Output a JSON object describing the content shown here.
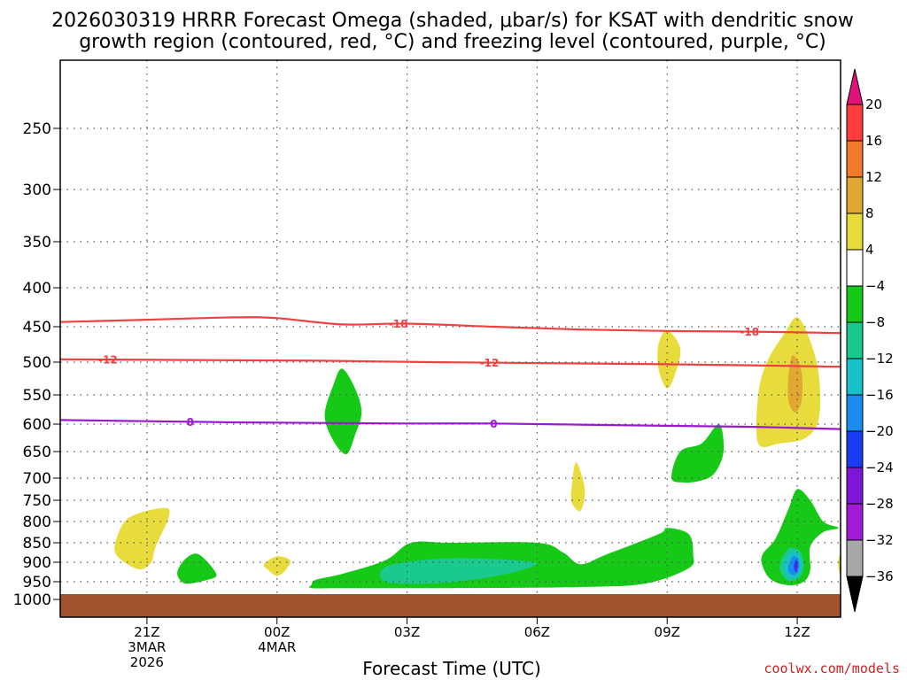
{
  "chart_data": {
    "type": "time-height contour",
    "title_line1": "2026030319 HRRR Forecast Omega (shaded, μbar/s) for KSAT with dendritic snow",
    "title_line2": "growth region (contoured, red, °C) and freezing level (contoured, purple, °C)",
    "xlabel": "Forecast Time (UTC)",
    "credit": "coolwx.com/models",
    "x_ticks": [
      {
        "hour": 2,
        "lines": [
          "21Z",
          "3MAR",
          "2026"
        ]
      },
      {
        "hour": 5,
        "lines": [
          "00Z",
          "4MAR"
        ]
      },
      {
        "hour": 8,
        "lines": [
          "03Z"
        ]
      },
      {
        "hour": 11,
        "lines": [
          "06Z"
        ]
      },
      {
        "hour": 14,
        "lines": [
          "09Z"
        ]
      },
      {
        "hour": 17,
        "lines": [
          "12Z"
        ]
      }
    ],
    "xlim": [
      0,
      18
    ],
    "y_ticks": [
      250,
      300,
      350,
      400,
      450,
      500,
      550,
      600,
      650,
      700,
      750,
      800,
      850,
      900,
      950,
      1000
    ],
    "ylim_hPa": [
      200,
      1025
    ],
    "colorbar_levels": [
      "20",
      "16",
      "12",
      "8",
      "4",
      "−4",
      "−8",
      "−12",
      "−16",
      "−20",
      "−24",
      "−28",
      "−32",
      "−36"
    ],
    "colorbar_colors": [
      "#ff3b3b",
      "#f07a2a",
      "#e0a830",
      "#e8dc3c",
      "#ffffff",
      "#16c916",
      "#1ac98e",
      "#18c0c8",
      "#1a8cf0",
      "#1a3cf0",
      "#7e16d8",
      "#a21ad6",
      "#a8a8a8"
    ],
    "colorbar_top_arrow_color": "#e0127a",
    "colorbar_bottom_arrow_color": "#000000",
    "contours": [
      {
        "label": "-18",
        "color": "#f04040",
        "points": [
          [
            0,
            444
          ],
          [
            2,
            441
          ],
          [
            4,
            438
          ],
          [
            5,
            439
          ],
          [
            6.5,
            447
          ],
          [
            8,
            446
          ],
          [
            10,
            450
          ],
          [
            12,
            454
          ],
          [
            14,
            456
          ],
          [
            16,
            457
          ],
          [
            18,
            459
          ]
        ],
        "label_positions": [
          [
            7.8,
            446
          ],
          [
            15.9,
            457
          ]
        ]
      },
      {
        "label": "-12",
        "color": "#f04040",
        "points": [
          [
            0,
            496
          ],
          [
            3,
            497
          ],
          [
            6,
            498
          ],
          [
            8.5,
            500
          ],
          [
            12,
            502
          ],
          [
            15,
            504
          ],
          [
            18,
            507
          ]
        ],
        "label_positions": [
          [
            1.1,
            496
          ],
          [
            9.9,
            501
          ]
        ]
      },
      {
        "label": "0",
        "color": "#9c18d0",
        "points": [
          [
            0,
            593
          ],
          [
            2,
            595
          ],
          [
            4,
            597
          ],
          [
            6,
            598
          ],
          [
            8,
            599
          ],
          [
            10,
            599
          ],
          [
            12,
            601
          ],
          [
            14,
            603
          ],
          [
            16,
            605
          ],
          [
            18,
            609
          ]
        ],
        "label_positions": [
          [
            3,
            596
          ],
          [
            10,
            599
          ]
        ]
      }
    ],
    "shaded_regions": [
      {
        "level": "4 to 8",
        "color": "#e8dc3c",
        "points": [
          [
            1.3,
            840
          ],
          [
            1.6,
            790
          ],
          [
            2.4,
            768
          ],
          [
            2.5,
            790
          ],
          [
            2.2,
            860
          ],
          [
            2.1,
            900
          ],
          [
            1.8,
            918
          ],
          [
            1.3,
            882
          ]
        ]
      },
      {
        "level": "4 to 8",
        "color": "#e8dc3c",
        "points": [
          [
            4.7,
            905
          ],
          [
            5.0,
            885
          ],
          [
            5.3,
            895
          ],
          [
            5.2,
            920
          ],
          [
            5.0,
            935
          ],
          [
            4.8,
            920
          ]
        ]
      },
      {
        "level": "4 to 8",
        "color": "#e8dc3c",
        "points": [
          [
            13.8,
            475
          ],
          [
            14.0,
            455
          ],
          [
            14.3,
            480
          ],
          [
            14.2,
            515
          ],
          [
            14.0,
            540
          ],
          [
            13.8,
            510
          ]
        ]
      },
      {
        "level": "4 to 8",
        "color": "#e8dc3c",
        "points": [
          [
            11.8,
            720
          ],
          [
            11.9,
            670
          ],
          [
            12.1,
            725
          ],
          [
            12.0,
            775
          ],
          [
            11.8,
            755
          ]
        ]
      },
      {
        "level": "4 to 8",
        "color": "#e8dc3c",
        "points": [
          [
            16.1,
            550
          ],
          [
            16.3,
            500
          ],
          [
            16.7,
            460
          ],
          [
            17.0,
            438
          ],
          [
            17.3,
            470
          ],
          [
            17.5,
            520
          ],
          [
            17.5,
            590
          ],
          [
            17.2,
            625
          ],
          [
            16.6,
            635
          ],
          [
            16.1,
            635
          ]
        ]
      },
      {
        "level": "8 to 12",
        "color": "#e0a830",
        "points": [
          [
            16.8,
            520
          ],
          [
            16.9,
            490
          ],
          [
            17.1,
            515
          ],
          [
            17.1,
            560
          ],
          [
            16.95,
            580
          ],
          [
            16.8,
            560
          ]
        ]
      },
      {
        "level": "4 to 8",
        "color": "#e8dc3c",
        "points": [
          [
            17.95,
            895
          ],
          [
            18,
            880
          ],
          [
            18,
            930
          ],
          [
            17.95,
            915
          ]
        ]
      },
      {
        "level": "-4 to -8",
        "color": "#16c916",
        "points": [
          [
            6.1,
            585
          ],
          [
            6.3,
            535
          ],
          [
            6.5,
            510
          ],
          [
            6.8,
            540
          ],
          [
            6.95,
            580
          ],
          [
            6.8,
            620
          ],
          [
            6.6,
            655
          ],
          [
            6.3,
            630
          ]
        ]
      },
      {
        "level": "-4 to -8",
        "color": "#16c916",
        "points": [
          [
            2.7,
            925
          ],
          [
            2.9,
            890
          ],
          [
            3.2,
            880
          ],
          [
            3.6,
            930
          ],
          [
            3.4,
            945
          ],
          [
            3.0,
            955
          ],
          [
            2.8,
            950
          ]
        ]
      },
      {
        "level": "-4 to -8",
        "color": "#16c916",
        "points": [
          [
            14.1,
            700
          ],
          [
            14.3,
            650
          ],
          [
            14.8,
            635
          ],
          [
            15.2,
            600
          ],
          [
            15.3,
            650
          ],
          [
            15.1,
            690
          ],
          [
            14.8,
            705
          ],
          [
            14.4,
            710
          ]
        ]
      },
      {
        "level": "-4 to -8",
        "color": "#16c916",
        "points": [
          [
            5.8,
            958
          ],
          [
            5.9,
            945
          ],
          [
            6.5,
            930
          ],
          [
            7.5,
            895
          ],
          [
            8.1,
            850
          ],
          [
            9,
            850
          ],
          [
            11,
            850
          ],
          [
            11.6,
            875
          ],
          [
            12.0,
            905
          ],
          [
            12.6,
            880
          ],
          [
            13.8,
            830
          ],
          [
            14.0,
            815
          ],
          [
            14.5,
            830
          ],
          [
            14.6,
            880
          ],
          [
            14.5,
            915
          ],
          [
            13.5,
            955
          ],
          [
            12,
            965
          ],
          [
            9,
            968
          ],
          [
            6.5,
            968
          ],
          [
            5.8,
            968
          ]
        ]
      },
      {
        "level": "-4 to -8",
        "color": "#16c916",
        "points": [
          [
            16.2,
            880
          ],
          [
            16.5,
            840
          ],
          [
            16.8,
            770
          ],
          [
            17.0,
            725
          ],
          [
            17.3,
            750
          ],
          [
            17.6,
            800
          ],
          [
            17.95,
            815
          ],
          [
            17.6,
            825
          ],
          [
            17.3,
            860
          ],
          [
            17.3,
            920
          ],
          [
            17.15,
            950
          ],
          [
            16.8,
            960
          ],
          [
            16.4,
            945
          ],
          [
            16.2,
            910
          ]
        ]
      },
      {
        "level": "-8 to -12",
        "color": "#1ac98e",
        "points": [
          [
            7.5,
            912
          ],
          [
            8.5,
            893
          ],
          [
            9.5,
            890
          ],
          [
            10.5,
            895
          ],
          [
            11.0,
            903
          ],
          [
            10.5,
            925
          ],
          [
            9.5,
            945
          ],
          [
            8.5,
            955
          ],
          [
            7.5,
            950
          ]
        ]
      },
      {
        "level": "-8 to -12",
        "color": "#1ac98e",
        "points": [
          [
            16.6,
            905
          ],
          [
            16.8,
            865
          ],
          [
            17.05,
            870
          ],
          [
            17.15,
            905
          ],
          [
            17.05,
            940
          ],
          [
            16.8,
            948
          ],
          [
            16.65,
            930
          ]
        ]
      },
      {
        "level": "-12 to -16",
        "color": "#18c0c8",
        "points": [
          [
            16.7,
            905
          ],
          [
            16.85,
            875
          ],
          [
            17.05,
            882
          ],
          [
            17.12,
            910
          ],
          [
            17.0,
            935
          ],
          [
            16.85,
            942
          ],
          [
            16.72,
            925
          ]
        ]
      },
      {
        "level": "-16 to -20",
        "color": "#1a8cf0",
        "points": [
          [
            16.8,
            908
          ],
          [
            16.9,
            885
          ],
          [
            17.0,
            890
          ],
          [
            17.05,
            912
          ],
          [
            16.98,
            930
          ],
          [
            16.88,
            932
          ],
          [
            16.8,
            922
          ]
        ]
      },
      {
        "level": "-20 to -24",
        "color": "#1a3cf0",
        "points": [
          [
            16.93,
            905
          ],
          [
            16.98,
            893
          ],
          [
            17.02,
            908
          ],
          [
            16.98,
            925
          ],
          [
            16.93,
            918
          ]
        ]
      },
      {
        "level": "-24 to -28",
        "color": "#7e16d8",
        "points": [
          [
            16.96,
            910
          ],
          [
            16.985,
            902
          ],
          [
            17.0,
            912
          ],
          [
            16.98,
            920
          ],
          [
            16.96,
            915
          ]
        ]
      }
    ],
    "ground": {
      "color": "#a0522d",
      "top_hPa": 985
    }
  }
}
